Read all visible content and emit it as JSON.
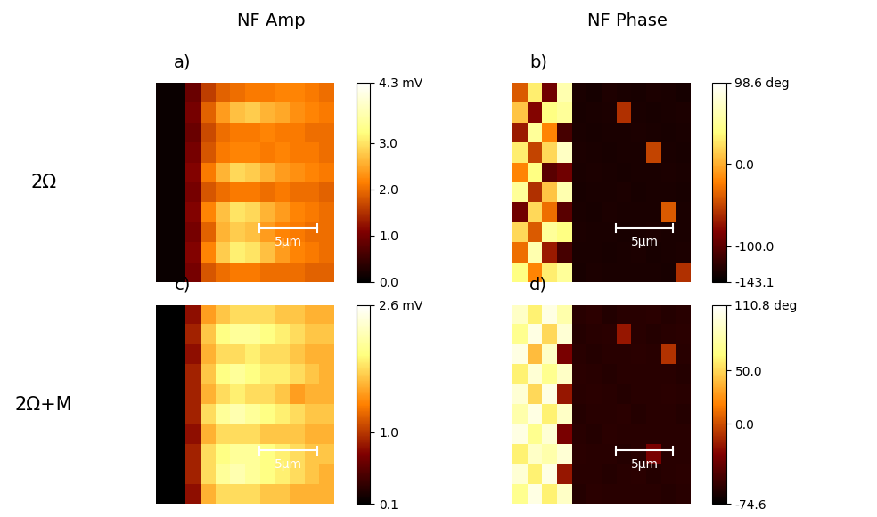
{
  "column_titles": [
    "NF Amp",
    "NF Phase"
  ],
  "row_labels": [
    "2Ω",
    "2Ω+M"
  ],
  "chart_data": [
    {
      "type": "heatmap",
      "panel": "a)",
      "xlim": [
        0,
        15.4
      ],
      "ylim": [
        0,
        17.8
      ],
      "tick_labels": false,
      "scale_bar": {
        "length": 5,
        "label": "5µm"
      },
      "colorbar": {
        "range": [
          0.0,
          4.3
        ],
        "ticks": [
          0.0,
          1.0,
          2.0,
          3.0,
          {
            "value": 4.3,
            "label": "4.3 mV"
          }
        ]
      },
      "cells": [
        [
          0.1,
          0.1,
          0.9,
          1.6,
          1.9,
          2.0,
          2.1,
          2.1,
          2.2,
          2.2,
          2.1,
          2.0
        ],
        [
          0.1,
          0.1,
          1.0,
          1.9,
          2.4,
          2.7,
          2.8,
          2.6,
          2.5,
          2.3,
          2.2,
          2.1
        ],
        [
          0.1,
          0.1,
          0.9,
          1.7,
          2.0,
          2.1,
          2.1,
          2.2,
          2.1,
          2.1,
          2.0,
          2.0
        ],
        [
          0.1,
          0.1,
          1.0,
          1.8,
          2.1,
          2.2,
          2.2,
          2.1,
          2.2,
          2.1,
          2.1,
          2.0
        ],
        [
          0.1,
          0.1,
          1.1,
          2.1,
          2.6,
          2.9,
          2.8,
          2.6,
          2.4,
          2.3,
          2.2,
          2.1
        ],
        [
          0.1,
          0.1,
          1.0,
          1.8,
          2.0,
          2.1,
          2.1,
          2.0,
          2.1,
          2.0,
          2.0,
          1.9
        ],
        [
          0.1,
          0.1,
          1.1,
          2.2,
          2.7,
          3.0,
          2.9,
          2.6,
          2.4,
          2.2,
          2.1,
          2.0
        ],
        [
          0.1,
          0.1,
          1.0,
          1.9,
          2.6,
          2.8,
          2.7,
          2.4,
          2.2,
          2.1,
          2.0,
          2.0
        ],
        [
          0.1,
          0.1,
          1.1,
          2.2,
          2.8,
          3.1,
          3.0,
          2.7,
          2.4,
          2.2,
          2.1,
          2.0
        ],
        [
          0.1,
          0.1,
          1.0,
          1.8,
          2.0,
          2.1,
          2.1,
          2.0,
          2.0,
          2.0,
          1.9,
          1.9
        ]
      ]
    },
    {
      "type": "heatmap",
      "panel": "b)",
      "xlim": [
        0,
        15.4
      ],
      "ylim": [
        0,
        17.8
      ],
      "tick_labels": false,
      "scale_bar": {
        "length": 5,
        "label": "5µm"
      },
      "colorbar": {
        "range": [
          -143.1,
          98.6
        ],
        "ticks": [
          -143.1,
          -100.0,
          0.0,
          {
            "value": 98.6,
            "label": "98.6 deg"
          }
        ]
      },
      "cells": [
        [
          -40,
          30,
          -90,
          60,
          -130,
          -132,
          -128,
          -130,
          -131,
          -129,
          -130,
          -132
        ],
        [
          10,
          -80,
          40,
          50,
          -131,
          -130,
          -129,
          -60,
          -130,
          -131,
          -130,
          -129
        ],
        [
          -70,
          50,
          -20,
          -110,
          -130,
          -131,
          -130,
          -130,
          -129,
          -130,
          -131,
          -130
        ],
        [
          30,
          -50,
          20,
          70,
          -129,
          -130,
          -131,
          -130,
          -130,
          -50,
          -130,
          -131
        ],
        [
          -20,
          40,
          -100,
          -90,
          -130,
          -129,
          -130,
          -131,
          -130,
          -130,
          -129,
          -130
        ],
        [
          50,
          -60,
          10,
          60,
          -131,
          -130,
          -130,
          -129,
          -131,
          -130,
          -130,
          -131
        ],
        [
          -90,
          20,
          -30,
          -100,
          -130,
          -131,
          -129,
          -130,
          -130,
          -130,
          -40,
          -130
        ],
        [
          20,
          -40,
          50,
          40,
          -129,
          -130,
          -130,
          -131,
          -130,
          -129,
          -130,
          -130
        ],
        [
          -30,
          60,
          -70,
          -110,
          -130,
          -130,
          -131,
          -130,
          -129,
          -131,
          -130,
          -129
        ],
        [
          40,
          -20,
          30,
          50,
          -131,
          -129,
          -130,
          -130,
          -130,
          -130,
          -131,
          -60
        ]
      ]
    },
    {
      "type": "heatmap",
      "panel": "c)",
      "xlim": [
        0,
        15.4
      ],
      "ylim": [
        0,
        17.8
      ],
      "tick_labels": false,
      "scale_bar": {
        "length": 5,
        "label": "5µm"
      },
      "colorbar": {
        "range": [
          0.1,
          2.6
        ],
        "ticks": [
          0.1,
          1.0,
          {
            "value": 2.6,
            "label": "2.6 mV"
          }
        ]
      },
      "cells": [
        [
          0.1,
          0.1,
          0.8,
          1.5,
          1.7,
          1.8,
          1.8,
          1.8,
          1.7,
          1.7,
          1.6,
          1.6
        ],
        [
          0.1,
          0.1,
          0.9,
          1.7,
          2.0,
          2.1,
          2.1,
          2.0,
          1.9,
          1.8,
          1.7,
          1.7
        ],
        [
          0.1,
          0.1,
          0.8,
          1.6,
          1.8,
          1.8,
          1.9,
          1.8,
          1.8,
          1.7,
          1.6,
          1.6
        ],
        [
          0.1,
          0.1,
          0.9,
          1.7,
          2.0,
          2.1,
          2.0,
          1.9,
          1.9,
          1.8,
          1.7,
          1.6
        ],
        [
          0.1,
          0.1,
          0.9,
          1.6,
          1.8,
          1.9,
          1.8,
          1.8,
          1.7,
          1.5,
          1.6,
          1.6
        ],
        [
          0.1,
          0.1,
          0.9,
          1.8,
          2.1,
          2.2,
          2.1,
          2.0,
          1.9,
          1.8,
          1.7,
          1.7
        ],
        [
          0.1,
          0.1,
          0.8,
          1.6,
          1.8,
          1.8,
          1.8,
          1.7,
          1.7,
          1.7,
          1.6,
          1.6
        ],
        [
          0.1,
          0.1,
          0.9,
          1.8,
          2.0,
          2.1,
          2.1,
          2.0,
          1.9,
          1.8,
          1.7,
          1.7
        ],
        [
          0.1,
          0.1,
          0.9,
          1.8,
          2.1,
          2.2,
          2.1,
          2.0,
          1.9,
          1.8,
          1.7,
          1.6
        ],
        [
          0.1,
          0.1,
          0.8,
          1.6,
          1.8,
          1.8,
          1.8,
          1.7,
          1.7,
          1.6,
          1.6,
          1.6
        ]
      ]
    },
    {
      "type": "heatmap",
      "panel": "d)",
      "xlim": [
        0,
        15.4
      ],
      "ylim": [
        0,
        17.8
      ],
      "tick_labels": false,
      "scale_bar": {
        "length": 5,
        "label": "5µm"
      },
      "colorbar": {
        "range": [
          -74.6,
          110.8
        ],
        "ticks": [
          -74.6,
          0.0,
          50.0,
          {
            "value": 110.8,
            "label": "110.8 deg"
          }
        ]
      },
      "cells": [
        [
          90,
          60,
          100,
          80,
          -60,
          -58,
          -62,
          -60,
          -60,
          -59,
          -61,
          -60
        ],
        [
          70,
          100,
          50,
          95,
          -61,
          -60,
          -59,
          -20,
          -60,
          -61,
          -60,
          -59
        ],
        [
          100,
          40,
          90,
          -30,
          -60,
          -61,
          -60,
          -60,
          -59,
          -60,
          -10,
          -60
        ],
        [
          60,
          95,
          70,
          90,
          -59,
          -60,
          -61,
          -60,
          -60,
          -60,
          -60,
          -61
        ],
        [
          95,
          50,
          100,
          -20,
          -60,
          -59,
          -60,
          -61,
          -60,
          -60,
          -59,
          -60
        ],
        [
          80,
          100,
          60,
          90,
          -61,
          -60,
          -60,
          -59,
          -61,
          -60,
          -60,
          -61
        ],
        [
          100,
          70,
          95,
          -30,
          -60,
          -61,
          -59,
          -60,
          -60,
          -60,
          -60,
          -60
        ],
        [
          60,
          90,
          80,
          95,
          -59,
          -60,
          -60,
          -61,
          -60,
          -30,
          -60,
          -60
        ],
        [
          95,
          60,
          100,
          -20,
          -60,
          -60,
          -61,
          -60,
          -59,
          -61,
          -60,
          -59
        ],
        [
          70,
          100,
          60,
          90,
          -61,
          -59,
          -60,
          -60,
          -60,
          -60,
          -61,
          -60
        ]
      ]
    }
  ]
}
